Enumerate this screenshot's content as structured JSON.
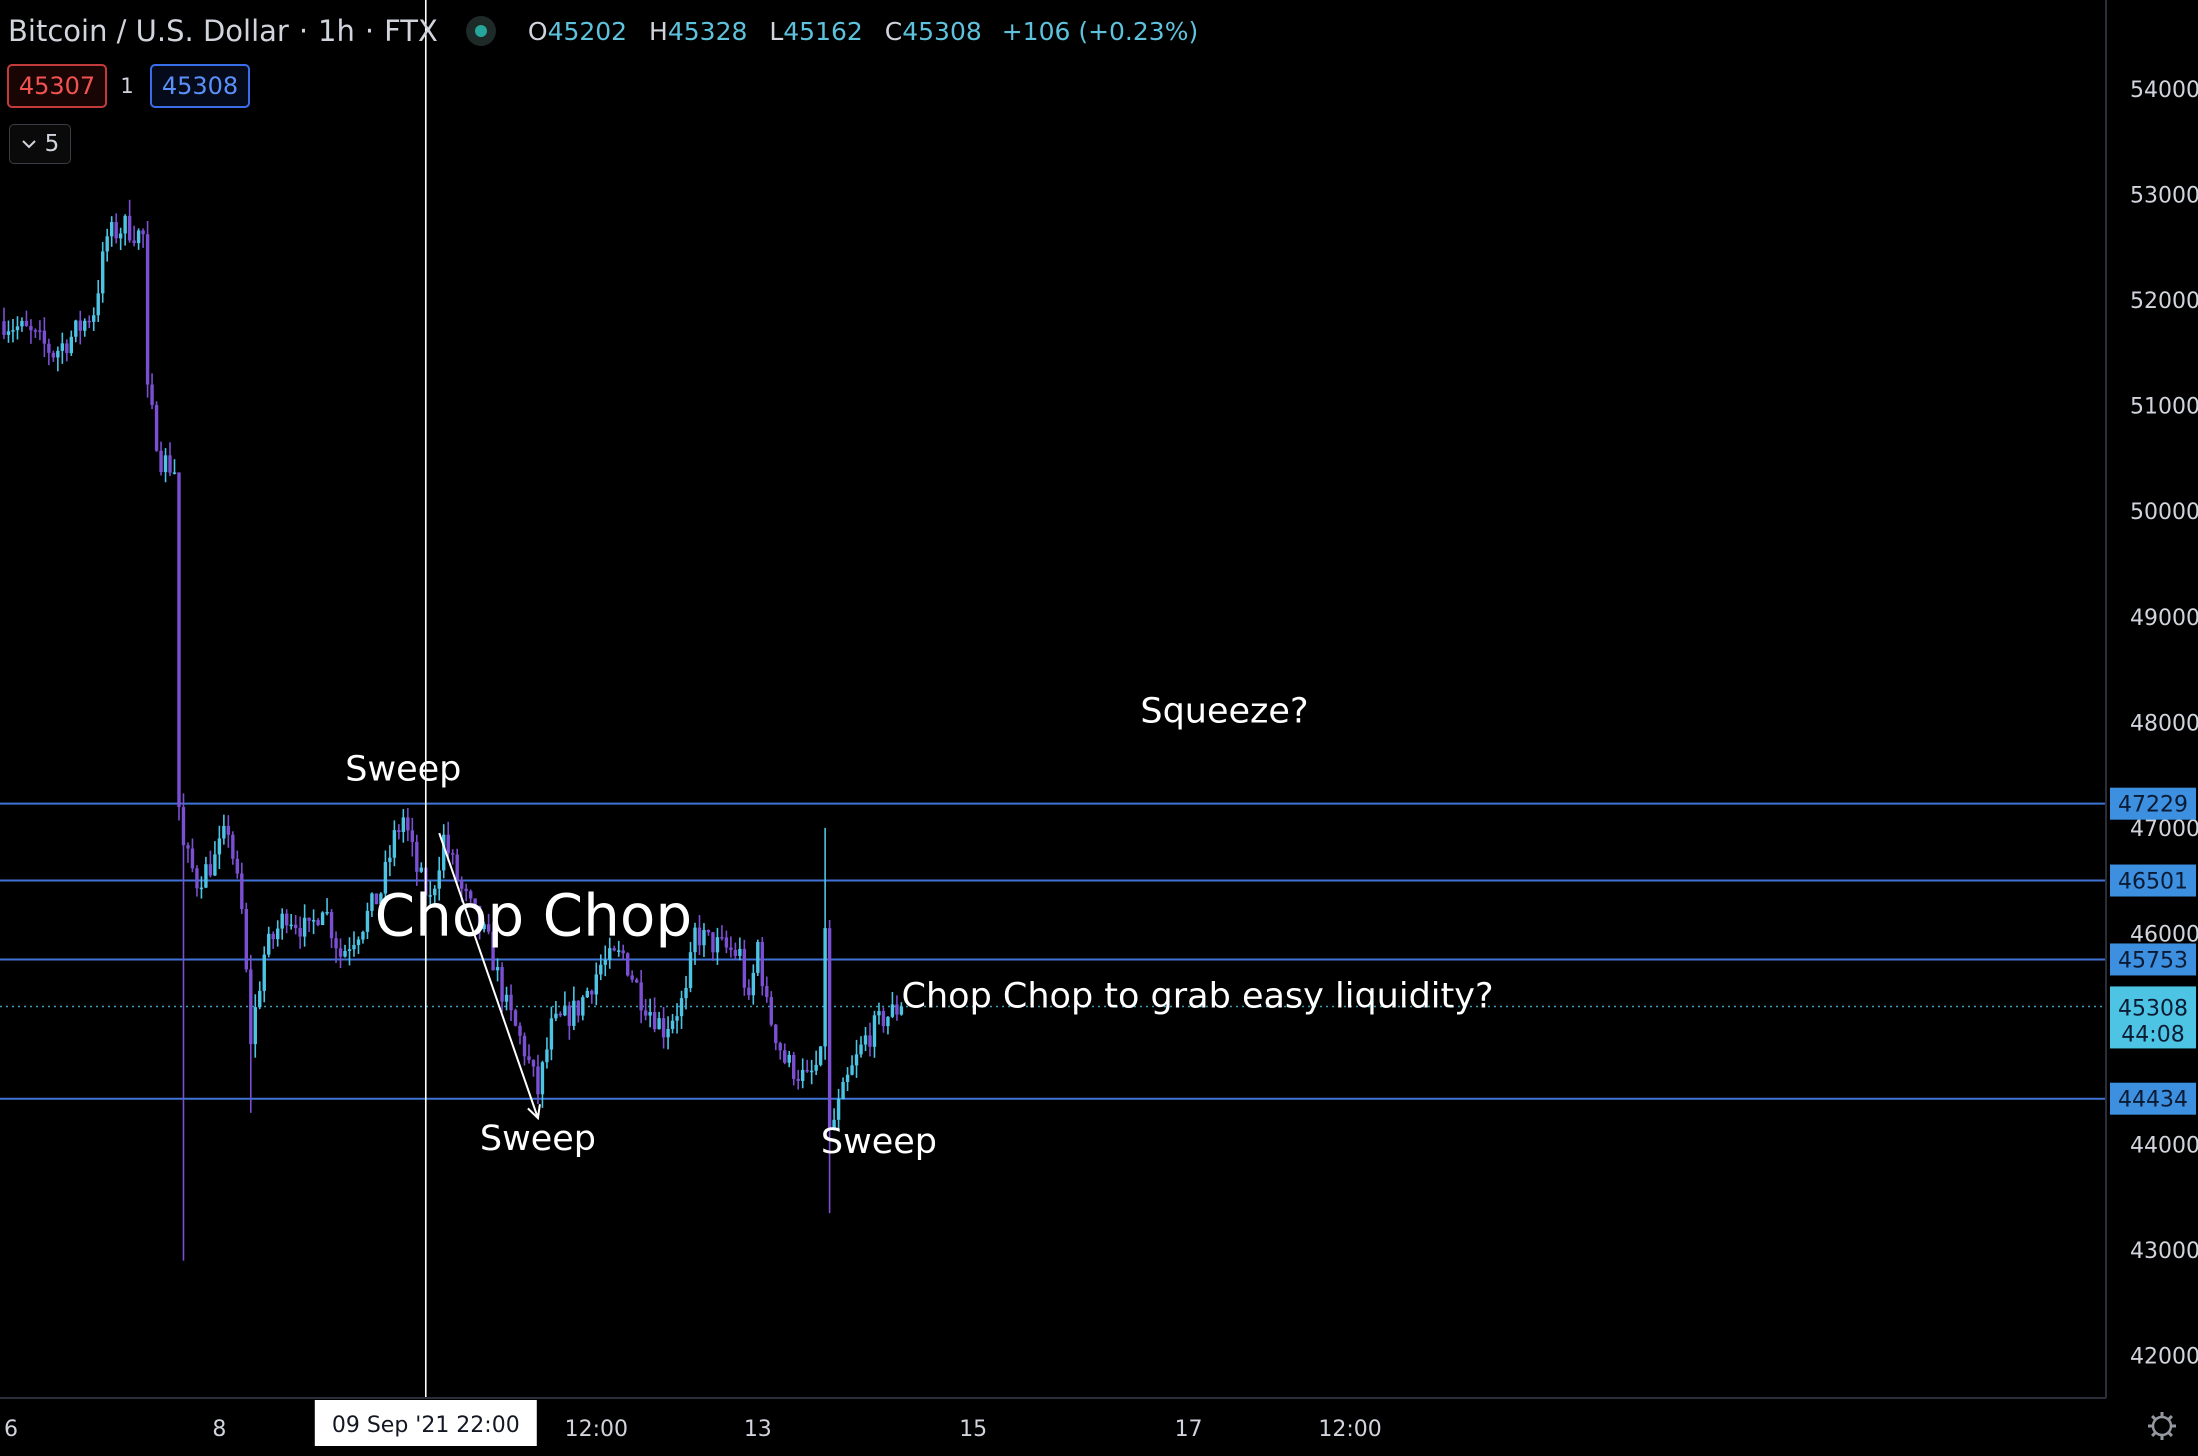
{
  "header": {
    "symbol": "Bitcoin / U.S. Dollar",
    "sep1": "·",
    "interval": "1h",
    "sep2": "·",
    "exchange": "FTX",
    "ohlc": {
      "o": "45202",
      "h": "45328",
      "l": "45162",
      "c": "45308",
      "change": "+106 (+0.23%)"
    }
  },
  "trade": {
    "sell_price": "45307",
    "quantity": "1",
    "buy_price": "45308"
  },
  "indicators_toggle": {
    "count": "5"
  },
  "colors": {
    "up": "#4dc4e4",
    "down": "#7b4fd1",
    "hline": "#3f74d6",
    "label_bg": "#3d8fe0"
  },
  "chart_data": {
    "type": "candlestick",
    "symbol": "BTCUSD",
    "timeframe": "1h",
    "ylim": [
      41600,
      54700
    ],
    "y_ticks": [
      42000,
      43000,
      44000,
      45000,
      46000,
      47000,
      48000,
      49000,
      50000,
      51000,
      52000,
      53000,
      54000
    ],
    "y_tick_labels": [
      "42000",
      "43000",
      "44000",
      "46000",
      "47000",
      "48000",
      "49000",
      "50000",
      "51000",
      "52000",
      "53000",
      "54000"
    ],
    "x_ticks": [
      {
        "label": "6",
        "hour": 0
      },
      {
        "label": "8",
        "hour": 48
      },
      {
        "label": "12:00",
        "hour": 132
      },
      {
        "label": "13",
        "hour": 168
      },
      {
        "label": "15",
        "hour": 216
      },
      {
        "label": "17",
        "hour": 264
      },
      {
        "label": "12:00",
        "hour": 300
      }
    ],
    "crosshair": {
      "hour": 94,
      "date": "09 Sep '21",
      "time": "22:00"
    },
    "horizontal_levels": [
      {
        "price": 47229,
        "label": "47229"
      },
      {
        "price": 46501,
        "label": "46501"
      },
      {
        "price": 45753,
        "label": "45753"
      },
      {
        "price": 44434,
        "label": "44434"
      }
    ],
    "last_price": {
      "price": 45308,
      "label": "45308",
      "countdown": "44:08"
    },
    "annotations": [
      {
        "text": "Sweep",
        "hour": 89,
        "price": 47450
      },
      {
        "text": "Sweep",
        "hour": 119,
        "price": 43950
      },
      {
        "text": "Sweep",
        "hour": 195,
        "price": 43920
      },
      {
        "text": "Chop Chop",
        "hour": 118,
        "price": 45980
      },
      {
        "text": "Squeeze?",
        "hour": 272,
        "price": 48000
      },
      {
        "text": "Chop Chop to grab easy liquidity?",
        "hour": 266,
        "price": 45300
      }
    ],
    "trend_line": {
      "from": {
        "hour": 97,
        "price": 46950
      },
      "to": {
        "hour": 119,
        "price": 44250
      }
    },
    "key_points": [
      {
        "hour": 0,
        "close": 51800
      },
      {
        "hour": 5,
        "close": 51700
      },
      {
        "hour": 11,
        "close": 51500
      },
      {
        "hour": 15,
        "close": 51650
      },
      {
        "hour": 20,
        "close": 51900
      },
      {
        "hour": 23,
        "close": 52600
      },
      {
        "hour": 27,
        "close": 52700
      },
      {
        "hour": 31,
        "close": 52600
      },
      {
        "hour": 32,
        "close": 51100
      },
      {
        "hour": 35,
        "close": 50500
      },
      {
        "hour": 38,
        "close": 50400
      },
      {
        "hour": 39,
        "close": 47200
      },
      {
        "hour": 40,
        "close": 46800
      },
      {
        "hour": 43,
        "close": 46500
      },
      {
        "hour": 47,
        "close": 46700
      },
      {
        "hour": 50,
        "close": 47000
      },
      {
        "hour": 53,
        "close": 46200
      },
      {
        "hour": 55,
        "close": 45000
      },
      {
        "hour": 58,
        "close": 45800
      },
      {
        "hour": 63,
        "close": 46200
      },
      {
        "hour": 68,
        "close": 46000
      },
      {
        "hour": 71,
        "close": 46300
      },
      {
        "hour": 75,
        "close": 45800
      },
      {
        "hour": 80,
        "close": 46100
      },
      {
        "hour": 84,
        "close": 46400
      },
      {
        "hour": 87,
        "close": 46900
      },
      {
        "hour": 89,
        "close": 47100
      },
      {
        "hour": 92,
        "close": 46600
      },
      {
        "hour": 95,
        "close": 46300
      },
      {
        "hour": 98,
        "close": 46900
      },
      {
        "hour": 102,
        "close": 46400
      },
      {
        "hour": 108,
        "close": 45900
      },
      {
        "hour": 112,
        "close": 45300
      },
      {
        "hour": 116,
        "close": 44900
      },
      {
        "hour": 119,
        "close": 44500
      },
      {
        "hour": 122,
        "close": 45100
      },
      {
        "hour": 128,
        "close": 45300
      },
      {
        "hour": 133,
        "close": 45700
      },
      {
        "hour": 138,
        "close": 45800
      },
      {
        "hour": 142,
        "close": 45400
      },
      {
        "hour": 147,
        "close": 45100
      },
      {
        "hour": 152,
        "close": 45400
      },
      {
        "hour": 154,
        "close": 46000
      },
      {
        "hour": 158,
        "close": 45900
      },
      {
        "hour": 164,
        "close": 45800
      },
      {
        "hour": 166,
        "close": 45300
      },
      {
        "hour": 168,
        "close": 45900
      },
      {
        "hour": 170,
        "close": 45300
      },
      {
        "hour": 174,
        "close": 44800
      },
      {
        "hour": 179,
        "close": 44600
      },
      {
        "hour": 182,
        "close": 44800
      },
      {
        "hour": 183,
        "close": 46100
      },
      {
        "hour": 184,
        "close": 44100
      },
      {
        "hour": 188,
        "close": 44600
      },
      {
        "hour": 192,
        "close": 45000
      },
      {
        "hour": 196,
        "close": 45200
      },
      {
        "hour": 200,
        "close": 45308
      }
    ],
    "extreme_wicks": [
      {
        "hour": 40,
        "low": 42900
      },
      {
        "hour": 183,
        "high": 47000
      },
      {
        "hour": 184,
        "low": 43350
      },
      {
        "hour": 28,
        "high": 52950
      },
      {
        "hour": 55,
        "low": 44300
      }
    ]
  }
}
